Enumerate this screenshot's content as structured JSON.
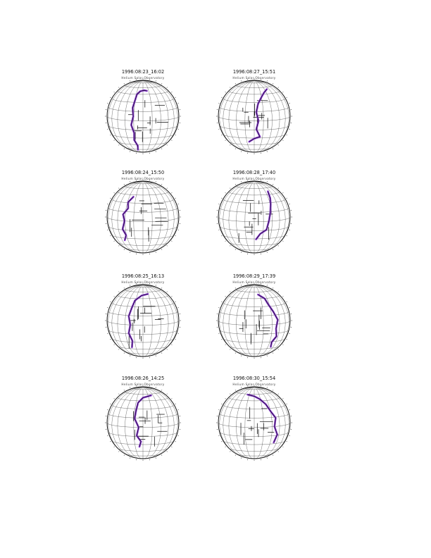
{
  "colors": {
    "line": "#000000",
    "grid": "#333333",
    "trace": "#8a3fd0"
  },
  "panels": [
    {
      "title": "1996:08:23_16:02",
      "subtitle": "Helium Solar Observatory"
    },
    {
      "title": "1996:08:27_15:51",
      "subtitle": "Helium Solar Observatory"
    },
    {
      "title": "1996:08:24_15:50",
      "subtitle": "Helium Solar Observatory"
    },
    {
      "title": "1996:08:28_17:40",
      "subtitle": "Helium Solar Observatory"
    },
    {
      "title": "1996:08:25_16:13",
      "subtitle": "Helium Solar Observatory"
    },
    {
      "title": "1996:08:29_17:39",
      "subtitle": "Helium Solar Observatory"
    },
    {
      "title": "1996:08:26_14:25",
      "subtitle": "Helium Solar Observatory"
    },
    {
      "title": "1996:08:30_15:54",
      "subtitle": "Helium Solar Observatory"
    }
  ]
}
